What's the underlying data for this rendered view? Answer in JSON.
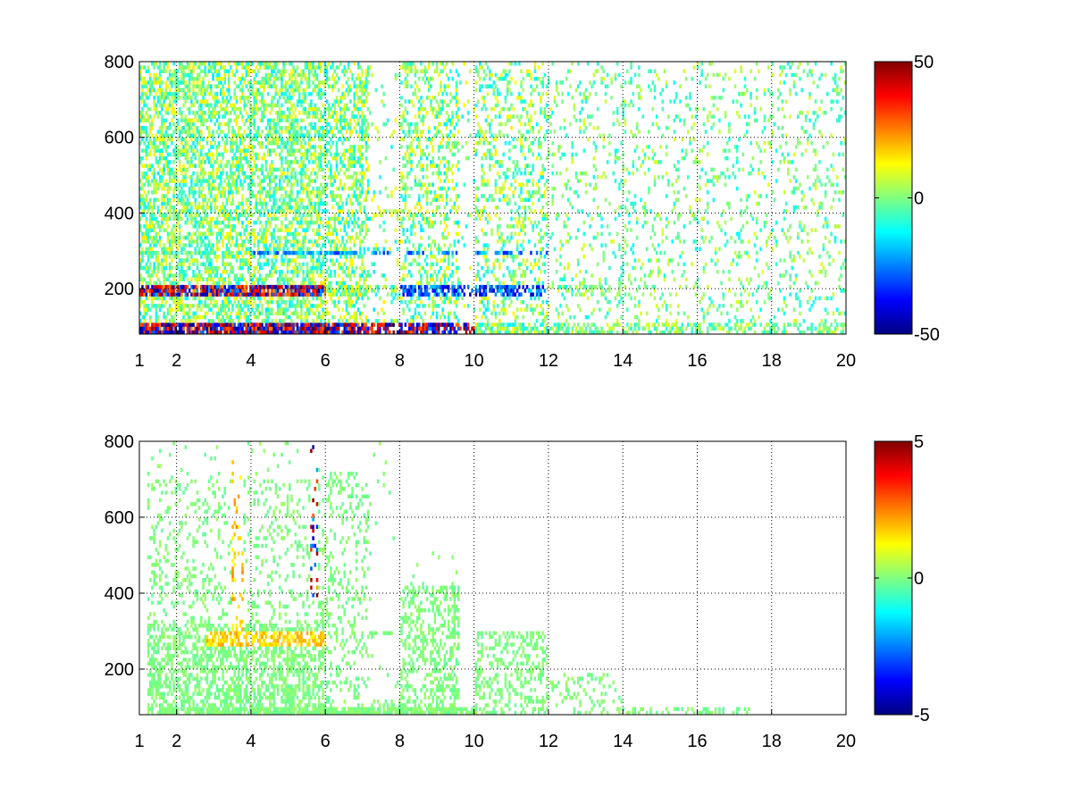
{
  "chart_data": [
    {
      "type": "heatmap",
      "title": "",
      "xlabel": "",
      "ylabel": "",
      "xlim": [
        1,
        20
      ],
      "ylim": [
        80,
        800
      ],
      "x_ticks": [
        1,
        2,
        4,
        6,
        8,
        10,
        12,
        14,
        16,
        18,
        20
      ],
      "y_ticks": [
        200,
        400,
        600,
        800
      ],
      "grid": true,
      "grid_style": "dotted",
      "colormap": "jet",
      "clim": [
        -50,
        50
      ],
      "colorbar_ticks": [
        -50,
        0,
        50
      ],
      "colorbar_position": "right",
      "description_of_pattern": "dense values for x<6 with strong positive/negative bands near y=80, 200, 300; sparse speckle for x>10"
    },
    {
      "type": "heatmap",
      "title": "",
      "xlabel": "",
      "ylabel": "",
      "xlim": [
        1,
        20
      ],
      "ylim": [
        80,
        800
      ],
      "x_ticks": [
        1,
        2,
        4,
        6,
        8,
        10,
        12,
        14,
        16,
        18,
        20
      ],
      "y_ticks": [
        200,
        400,
        600,
        800
      ],
      "grid": true,
      "grid_style": "dotted",
      "colormap": "jet",
      "clim": [
        -5,
        5
      ],
      "colorbar_ticks": [
        -5,
        0,
        5
      ],
      "colorbar_position": "right",
      "description_of_pattern": "mostly near-zero (green) values concentrated below y=300 for x<12; yellow band near y=280 for x 3-6"
    }
  ],
  "colors": {
    "jet_stops": [
      "#000080",
      "#0000ff",
      "#00ffff",
      "#80ff80",
      "#ffff00",
      "#ff0000",
      "#800000"
    ],
    "grid": "#000000",
    "background": "#ffffff"
  }
}
